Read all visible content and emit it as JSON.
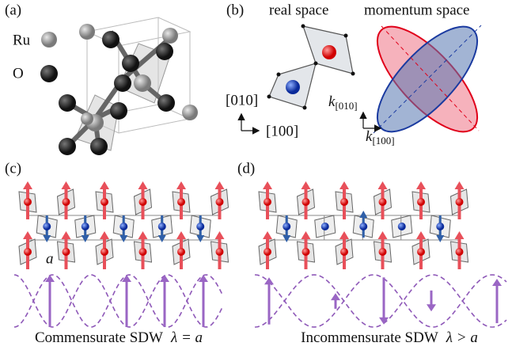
{
  "panels": {
    "a": {
      "label": "(a)",
      "legend": [
        {
          "label": "Ru"
        },
        {
          "label": "O"
        }
      ]
    },
    "b": {
      "label": "(b)",
      "real_space": "real space",
      "momentum_space": "momentum space",
      "axis_y": "[010]",
      "axis_x": "[100]",
      "k_y": {
        "symbol": "k",
        "sub": "[010]"
      },
      "k_x": {
        "symbol": "k",
        "sub": "[100]"
      }
    },
    "c": {
      "label": "(c)",
      "lattice_label": "a",
      "caption": {
        "text": "Commensurate SDW",
        "formula": "λ = a"
      }
    },
    "d": {
      "label": "(d)",
      "caption": {
        "text": "Incommensurate SDW",
        "formula": "λ > a"
      }
    }
  }
}
